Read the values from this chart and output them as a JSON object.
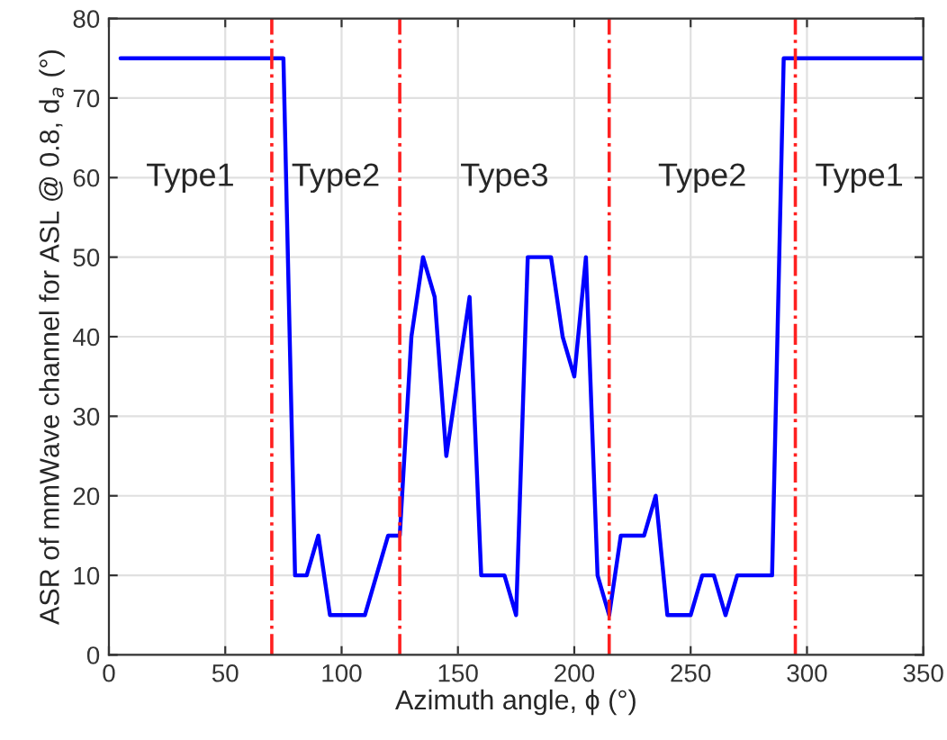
{
  "chart_data": {
    "type": "line",
    "xlabel": "Azimuth angle, ϕ (°)",
    "ylabel": "ASR of mmWave channel for ASL @ 0.8, d$_{a}$ (°)",
    "x": [
      5,
      10,
      15,
      20,
      25,
      30,
      35,
      40,
      45,
      50,
      55,
      60,
      65,
      70,
      75,
      80,
      85,
      90,
      95,
      100,
      105,
      110,
      115,
      120,
      125,
      130,
      135,
      140,
      145,
      150,
      155,
      160,
      165,
      170,
      175,
      180,
      185,
      190,
      195,
      200,
      205,
      210,
      215,
      220,
      225,
      230,
      235,
      240,
      245,
      250,
      255,
      260,
      265,
      270,
      275,
      280,
      285,
      290,
      295,
      300,
      305,
      310,
      315,
      320,
      325,
      330,
      335,
      340,
      345,
      350
    ],
    "series": [
      {
        "color": "#0000ff",
        "values": [
          75,
          75,
          75,
          75,
          75,
          75,
          75,
          75,
          75,
          75,
          75,
          75,
          75,
          75,
          75,
          10,
          10,
          15,
          5,
          5,
          5,
          5,
          10,
          15,
          15,
          40,
          50,
          45,
          25,
          35,
          45,
          10,
          10,
          10,
          5,
          50,
          50,
          50,
          40,
          35,
          50,
          10,
          5,
          15,
          15,
          15,
          20,
          5,
          5,
          5,
          10,
          10,
          5,
          10,
          10,
          10,
          10,
          75,
          75,
          75,
          75,
          75,
          75,
          75,
          75,
          75,
          75,
          75,
          75,
          75
        ]
      }
    ],
    "xlim": [
      0,
      350
    ],
    "xticks": [
      0,
      50,
      100,
      150,
      200,
      250,
      300,
      350
    ],
    "ylim": [
      0,
      80
    ],
    "yticks": [
      0,
      10,
      20,
      30,
      40,
      50,
      60,
      70,
      80
    ],
    "grid": true,
    "marker": "none",
    "line_style": "solid",
    "ref_lines": [
      {
        "axis": "x",
        "value": 70,
        "color": "#ff2020",
        "line_style": "dashdot"
      },
      {
        "axis": "x",
        "value": 125,
        "color": "#ff2020",
        "line_style": "dashdot"
      },
      {
        "axis": "x",
        "value": 215,
        "color": "#ff2020",
        "line_style": "dashdot"
      },
      {
        "axis": "x",
        "value": 295,
        "color": "#ff2020",
        "line_style": "dashdot"
      }
    ],
    "annotations": [
      "Type1",
      "Type2",
      "Type3",
      "Type2",
      "Type1"
    ]
  }
}
